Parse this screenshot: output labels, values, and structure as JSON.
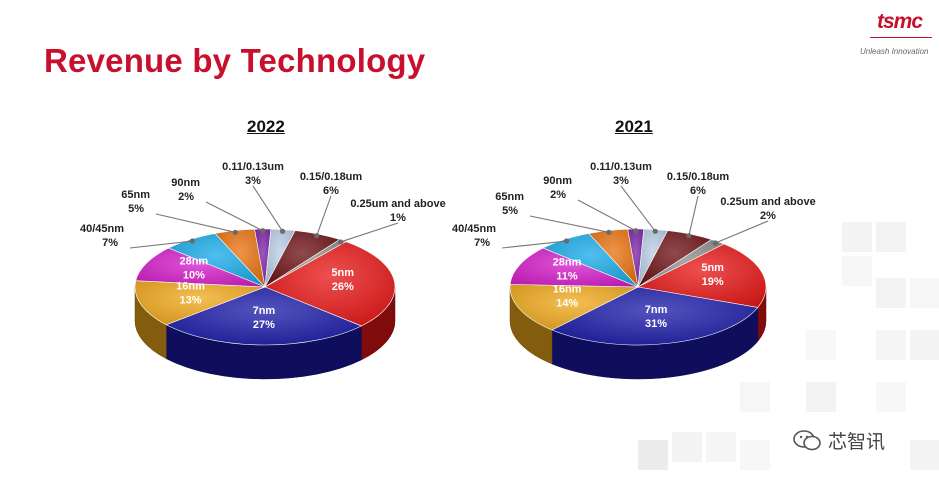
{
  "header": {
    "title": "Revenue by Technology",
    "logo_text": "tsmc",
    "tagline": "Unleash Innovation"
  },
  "watermark": {
    "text": "芯智讯"
  },
  "colors": {
    "title": "#c8102e",
    "5nm": "#e81414",
    "7nm": "#1a1aa8",
    "16nm": "#f0a81a",
    "28nm": "#d51bc9",
    "40/45nm": "#14a9e8",
    "65nm": "#e8700c",
    "90nm": "#7a1fa3",
    "0.11/0.13um": "#b8cce4",
    "0.15/0.18um": "#6b0e10",
    "0.25um and above": "#8c8c8c"
  },
  "chart_data": [
    {
      "type": "pie",
      "title": "2022",
      "categories": [
        "5nm",
        "7nm",
        "16nm",
        "28nm",
        "40/45nm",
        "65nm",
        "90nm",
        "0.11/0.13um",
        "0.15/0.18um",
        "0.25um and above"
      ],
      "values": [
        26,
        27,
        13,
        10,
        7,
        5,
        2,
        3,
        6,
        1
      ],
      "labels": [
        "26%",
        "27%",
        "13%",
        "10%",
        "7%",
        "5%",
        "2%",
        "3%",
        "6%",
        "1%"
      ]
    },
    {
      "type": "pie",
      "title": "2021",
      "categories": [
        "5nm",
        "7nm",
        "16nm",
        "28nm",
        "40/45nm",
        "65nm",
        "90nm",
        "0.11/0.13um",
        "0.15/0.18um",
        "0.25um and above"
      ],
      "values": [
        19,
        31,
        14,
        11,
        7,
        5,
        2,
        3,
        6,
        2
      ],
      "labels": [
        "19%",
        "31%",
        "14%",
        "11%",
        "7%",
        "5%",
        "2%",
        "3%",
        "6%",
        "2%"
      ]
    }
  ]
}
